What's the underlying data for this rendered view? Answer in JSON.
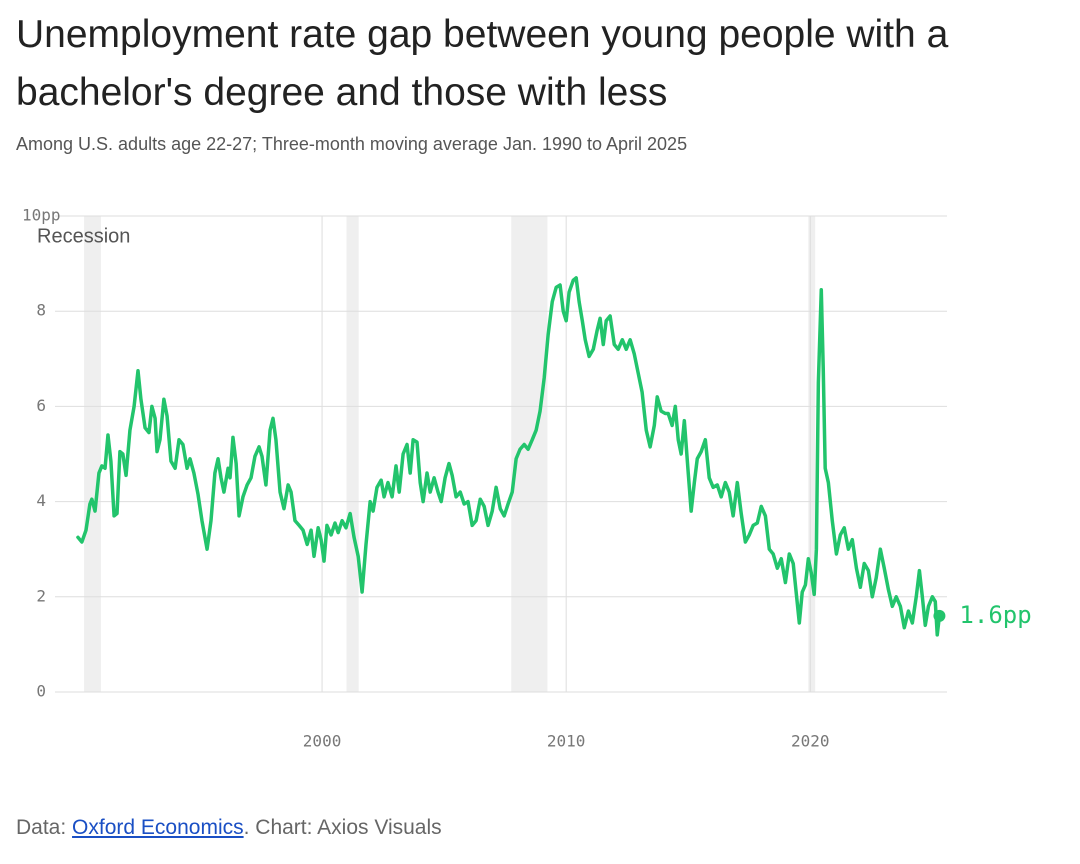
{
  "chart_data": {
    "type": "line",
    "title": "Unemployment rate gap between young people with a bachelor's degree and those with less",
    "subtitle": "Among U.S. adults age 22-27; Three-month moving average Jan. 1990 to April 2025",
    "source": {
      "prefix": "Data:",
      "link": "Oxford Economics",
      "suffix": ". Chart: Axios Visuals"
    },
    "xlim": [
      1989.06,
      2025.6
    ],
    "xticks": [
      2000,
      2010,
      2020
    ],
    "ylim": [
      0,
      10
    ],
    "yticks": [
      0,
      2,
      4,
      6,
      8,
      {
        "value": 10,
        "label": "10pp"
      }
    ],
    "grid": true,
    "recession_label": "Recession",
    "recession_color": "#efefef",
    "recessions": [
      [
        1990.25,
        1990.94
      ],
      [
        2001.0,
        2001.5
      ],
      [
        2007.75,
        2009.23
      ],
      [
        2019.92,
        2020.2
      ]
    ],
    "end_label": {
      "value": 1.6,
      "label": "1.6pp"
    },
    "series": [
      {
        "color": "#22c46c",
        "x": [
          1990.0,
          1990.16,
          1990.33,
          1990.49,
          1990.57,
          1990.7,
          1990.86,
          1990.98,
          1991.11,
          1991.23,
          1991.35,
          1991.48,
          1991.6,
          1991.72,
          1991.84,
          1991.97,
          1992.13,
          1992.3,
          1992.46,
          1992.58,
          1992.75,
          1992.91,
          1993.03,
          1993.16,
          1993.24,
          1993.36,
          1993.52,
          1993.65,
          1993.81,
          1993.98,
          1994.14,
          1994.3,
          1994.47,
          1994.59,
          1994.75,
          1994.92,
          1995.08,
          1995.29,
          1995.45,
          1995.61,
          1995.74,
          1995.86,
          1995.98,
          1996.15,
          1996.23,
          1996.35,
          1996.48,
          1996.6,
          1996.76,
          1996.93,
          1997.09,
          1997.25,
          1997.42,
          1997.54,
          1997.7,
          1997.87,
          1997.99,
          1998.11,
          1998.28,
          1998.44,
          1998.61,
          1998.73,
          1998.89,
          1999.06,
          1999.22,
          1999.39,
          1999.55,
          1999.67,
          1999.84,
          1999.96,
          2000.08,
          2000.2,
          2000.37,
          2000.53,
          2000.66,
          2000.82,
          2000.98,
          2001.15,
          2001.31,
          2001.48,
          2001.64,
          2001.8,
          2001.97,
          2002.09,
          2002.25,
          2002.42,
          2002.54,
          2002.7,
          2002.87,
          2003.03,
          2003.16,
          2003.32,
          2003.48,
          2003.61,
          2003.73,
          2003.89,
          2004.02,
          2004.14,
          2004.3,
          2004.43,
          2004.59,
          2004.75,
          2004.88,
          2005.04,
          2005.2,
          2005.33,
          2005.49,
          2005.66,
          2005.82,
          2005.98,
          2006.15,
          2006.31,
          2006.48,
          2006.64,
          2006.8,
          2006.97,
          2007.13,
          2007.3,
          2007.46,
          2007.62,
          2007.79,
          2007.95,
          2008.11,
          2008.28,
          2008.44,
          2008.61,
          2008.77,
          2008.93,
          2009.1,
          2009.26,
          2009.43,
          2009.59,
          2009.75,
          2009.88,
          2010.0,
          2010.12,
          2010.29,
          2010.41,
          2010.53,
          2010.66,
          2010.78,
          2010.94,
          2011.11,
          2011.27,
          2011.39,
          2011.52,
          2011.64,
          2011.8,
          2011.97,
          2012.13,
          2012.3,
          2012.46,
          2012.62,
          2012.79,
          2012.95,
          2013.11,
          2013.28,
          2013.44,
          2013.61,
          2013.73,
          2013.89,
          2014.06,
          2014.18,
          2014.34,
          2014.47,
          2014.59,
          2014.71,
          2014.84,
          2015.0,
          2015.12,
          2015.25,
          2015.37,
          2015.53,
          2015.7,
          2015.86,
          2016.02,
          2016.19,
          2016.35,
          2016.52,
          2016.68,
          2016.84,
          2017.01,
          2017.17,
          2017.34,
          2017.5,
          2017.66,
          2017.83,
          2017.99,
          2018.16,
          2018.32,
          2018.48,
          2018.65,
          2018.81,
          2018.98,
          2019.14,
          2019.3,
          2019.47,
          2019.55,
          2019.67,
          2019.8,
          2019.92,
          2020.04,
          2020.16,
          2020.25,
          2020.33,
          2020.45,
          2020.53,
          2020.61,
          2020.74,
          2020.9,
          2021.07,
          2021.23,
          2021.39,
          2021.56,
          2021.72,
          2021.89,
          2022.05,
          2022.21,
          2022.38,
          2022.54,
          2022.7,
          2022.87,
          2023.03,
          2023.2,
          2023.36,
          2023.52,
          2023.69,
          2023.85,
          2024.02,
          2024.18,
          2024.34,
          2024.47,
          2024.59,
          2024.71,
          2024.84,
          2025.0,
          2025.12,
          2025.2,
          2025.29
        ],
        "values": [
          3.25,
          3.15,
          3.4,
          3.95,
          4.05,
          3.8,
          4.6,
          4.75,
          4.7,
          5.4,
          4.85,
          3.7,
          3.75,
          5.05,
          5.0,
          4.55,
          5.5,
          6.0,
          6.75,
          6.15,
          5.55,
          5.45,
          6.0,
          5.75,
          5.05,
          5.3,
          6.15,
          5.8,
          4.85,
          4.7,
          5.3,
          5.2,
          4.7,
          4.9,
          4.6,
          4.15,
          3.6,
          3.0,
          3.6,
          4.6,
          4.9,
          4.5,
          4.2,
          4.7,
          4.5,
          5.35,
          4.8,
          3.7,
          4.1,
          4.35,
          4.5,
          4.95,
          5.15,
          4.95,
          4.35,
          5.5,
          5.75,
          5.3,
          4.2,
          3.85,
          4.35,
          4.2,
          3.6,
          3.5,
          3.4,
          3.1,
          3.4,
          2.85,
          3.45,
          3.2,
          2.75,
          3.5,
          3.3,
          3.55,
          3.35,
          3.6,
          3.45,
          3.75,
          3.25,
          2.85,
          2.1,
          3.1,
          4.0,
          3.8,
          4.3,
          4.45,
          4.1,
          4.4,
          4.1,
          4.75,
          4.2,
          5.0,
          5.2,
          4.6,
          5.3,
          5.25,
          4.4,
          4.0,
          4.6,
          4.2,
          4.5,
          4.2,
          4.0,
          4.5,
          4.8,
          4.55,
          4.1,
          4.2,
          3.95,
          4.0,
          3.5,
          3.6,
          4.05,
          3.9,
          3.5,
          3.8,
          4.3,
          3.85,
          3.7,
          3.95,
          4.2,
          4.9,
          5.1,
          5.2,
          5.1,
          5.3,
          5.5,
          5.9,
          6.6,
          7.5,
          8.2,
          8.5,
          8.55,
          8.0,
          7.8,
          8.4,
          8.65,
          8.7,
          8.2,
          7.8,
          7.4,
          7.05,
          7.2,
          7.6,
          7.85,
          7.3,
          7.8,
          7.9,
          7.3,
          7.2,
          7.4,
          7.2,
          7.4,
          7.1,
          6.7,
          6.3,
          5.5,
          5.15,
          5.6,
          6.2,
          5.9,
          5.85,
          5.85,
          5.6,
          6.0,
          5.3,
          5.0,
          5.7,
          4.6,
          3.8,
          4.4,
          4.9,
          5.05,
          5.3,
          4.5,
          4.3,
          4.35,
          4.1,
          4.4,
          4.2,
          3.7,
          4.4,
          3.75,
          3.15,
          3.3,
          3.5,
          3.55,
          3.9,
          3.7,
          3.0,
          2.9,
          2.6,
          2.8,
          2.3,
          2.9,
          2.7,
          1.85,
          1.45,
          2.1,
          2.25,
          2.8,
          2.5,
          2.05,
          3.0,
          6.5,
          8.45,
          6.8,
          4.7,
          4.4,
          3.6,
          2.9,
          3.3,
          3.45,
          3.0,
          3.2,
          2.6,
          2.2,
          2.7,
          2.55,
          2.0,
          2.4,
          3.0,
          2.6,
          2.15,
          1.8,
          2.0,
          1.8,
          1.35,
          1.7,
          1.45,
          2.0,
          2.55,
          2.0,
          1.4,
          1.8,
          2.0,
          1.9,
          1.2,
          1.6
        ]
      }
    ]
  }
}
